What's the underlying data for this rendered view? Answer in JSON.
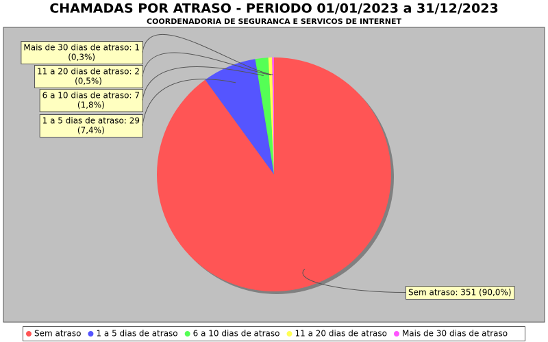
{
  "chart_data": {
    "type": "pie",
    "title": "CHAMADAS POR ATRASO - PERIODO 01/01/2023 a 31/12/2023",
    "subtitle": "COORDENADORIA DE SEGURANCA E SERVICOS DE INTERNET",
    "categories": [
      "Sem atraso",
      "1 a 5 dias de atraso",
      "6 a 10 dias de atraso",
      "11 a 20 dias de atraso",
      "Mais de 30 dias de atraso"
    ],
    "values": [
      351,
      29,
      7,
      2,
      1
    ],
    "value_labels": [
      [
        "Sem atraso: 351 (90,0%)"
      ],
      [
        "1 a 5 dias de atraso: 29",
        "(7,4%)"
      ],
      [
        "6 a 10 dias de atraso: 7",
        "(1,8%)"
      ],
      [
        "11 a 20 dias de atraso: 2",
        "(0,5%)"
      ],
      [
        "Mais de 30 dias de atraso: 1",
        "(0,3%)"
      ]
    ],
    "colors": [
      "#ff5555",
      "#5555ff",
      "#55ff55",
      "#ffff55",
      "#ff55ff"
    ]
  }
}
